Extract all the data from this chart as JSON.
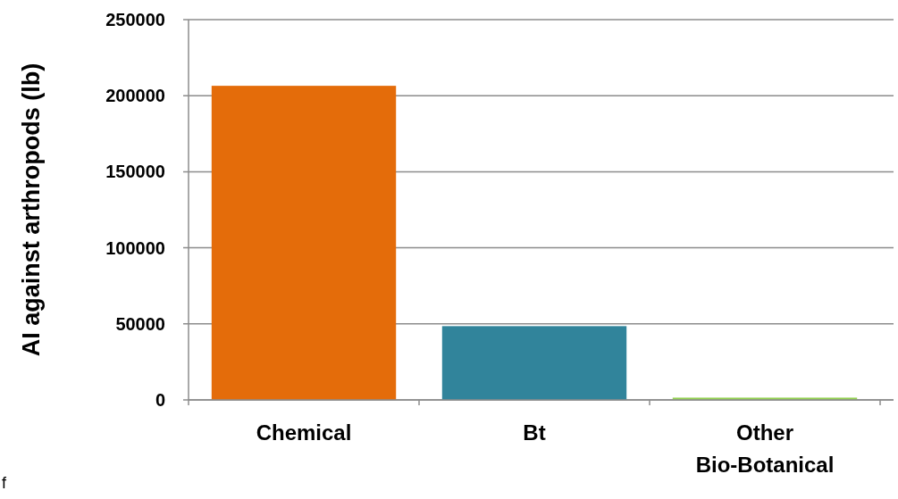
{
  "chart_data": {
    "type": "bar",
    "ylabel": "AI against arthropods (lb)",
    "categories": [
      "Chemical",
      "Bt",
      "Other Bio-Botanical"
    ],
    "values": [
      206500,
      48500,
      1500
    ],
    "colors": [
      "#e46c0a",
      "#31849b",
      "#92d050"
    ],
    "ylim": [
      0,
      250000
    ],
    "yticks": [
      0,
      50000,
      100000,
      150000,
      200000,
      250000
    ],
    "grid": "y",
    "annotations": [
      "f"
    ]
  }
}
